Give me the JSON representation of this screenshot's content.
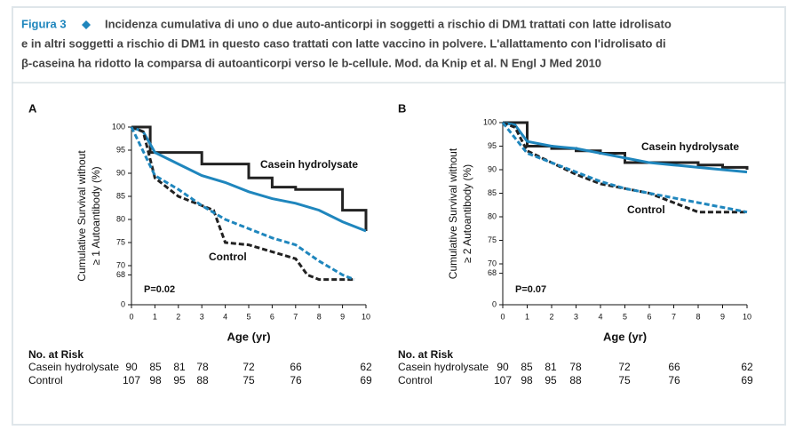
{
  "caption": {
    "label": "Figura 3",
    "lines": [
      "Incidenza cumulativa di uno o due auto-anticorpi in soggetti a rischio di DM1 trattati con latte idrolisato",
      "e in altri soggetti a rischio di DM1 in questo caso trattati con latte vaccino in polvere. L'allattamento con l'idrolisato di",
      "β-caseina ha ridotto la comparsa di autoanticorpi verso le b-cellule. Mod. da Knip et al. N Engl J Med 2010"
    ]
  },
  "chart_data": [
    {
      "type": "line",
      "panel": "A",
      "ylabel": [
        "Cumulative Survival without",
        "≥ 1 Autoantibody (%)"
      ],
      "xlabel": "Age (yr)",
      "annotation": "P=0.02",
      "xlim": [
        0,
        10
      ],
      "xticks": [
        0,
        1,
        2,
        3,
        4,
        5,
        6,
        7,
        8,
        9,
        10
      ],
      "ylim": [
        0,
        100
      ],
      "axis_break": [
        0,
        68
      ],
      "yticks": [
        0,
        68,
        70,
        75,
        80,
        85,
        90,
        95,
        100
      ],
      "series": [
        {
          "name": "Casein hydrolysate",
          "color": "#222222",
          "step": true,
          "x": [
            0,
            0.5,
            0.8,
            2,
            3,
            4,
            5,
            6,
            7,
            8,
            9,
            10
          ],
          "values": [
            100,
            100,
            94.5,
            94.5,
            92,
            92,
            89,
            87,
            86.5,
            86.5,
            82,
            77.5
          ]
        },
        {
          "color": "#1f86bd",
          "x": [
            0,
            0.5,
            1,
            2,
            3,
            4,
            5,
            6,
            7,
            8,
            9,
            10
          ],
          "values": [
            100,
            99,
            94.5,
            92,
            89.5,
            88,
            86,
            84.5,
            83.5,
            82,
            79.5,
            77.5
          ]
        },
        {
          "name": "Control",
          "color": "#222222",
          "dashed": true,
          "x": [
            0,
            0.5,
            1,
            2,
            3,
            3.5,
            4,
            5,
            6,
            7,
            7.5,
            8,
            9,
            9.5
          ],
          "values": [
            100,
            99,
            89,
            85,
            83,
            82,
            75,
            74.5,
            73,
            71.5,
            68,
            67,
            67,
            67
          ]
        },
        {
          "color": "#1f86bd",
          "dashed": true,
          "x": [
            0,
            1,
            2,
            3,
            4,
            5,
            6,
            7,
            8,
            9,
            9.5
          ],
          "values": [
            100,
            89.5,
            86.5,
            83,
            80,
            78,
            76,
            74.5,
            71,
            68,
            67
          ]
        }
      ],
      "risk_table": {
        "title": "No. at Risk",
        "rows": [
          [
            "Casein hydrolysate",
            "90",
            "85",
            "81",
            "78",
            "72",
            "66",
            "62"
          ],
          [
            "Control",
            "107",
            "98",
            "95",
            "88",
            "75",
            "76",
            "69"
          ]
        ]
      }
    },
    {
      "type": "line",
      "panel": "B",
      "ylabel": [
        "Cumulative Survival without",
        "≥ 2 Autoantibody (%)"
      ],
      "xlabel": "Age (yr)",
      "annotation": "P=0.07",
      "xlim": [
        0,
        10
      ],
      "xticks": [
        0,
        1,
        2,
        3,
        4,
        5,
        6,
        7,
        8,
        9,
        10
      ],
      "ylim": [
        0,
        100
      ],
      "axis_break": [
        0,
        68
      ],
      "yticks": [
        0,
        68,
        70,
        75,
        80,
        85,
        90,
        95,
        100
      ],
      "series": [
        {
          "name": "Casein hydrolysate",
          "color": "#222222",
          "step": true,
          "x": [
            0,
            0.5,
            1,
            2,
            3,
            4,
            5,
            6,
            7,
            8,
            9,
            10
          ],
          "values": [
            100,
            100,
            95,
            94.5,
            94,
            93.5,
            91.5,
            91.5,
            91.5,
            91,
            90.5,
            90
          ]
        },
        {
          "color": "#1f86bd",
          "x": [
            0,
            0.5,
            1,
            2,
            3,
            4,
            5,
            6,
            7,
            8,
            9,
            10
          ],
          "values": [
            100,
            99.5,
            96,
            95,
            94.5,
            93.5,
            92.5,
            91.5,
            91,
            90.5,
            90,
            89.5
          ]
        },
        {
          "name": "Control",
          "color": "#222222",
          "dashed": true,
          "x": [
            0,
            0.5,
            1,
            2,
            3,
            4,
            5,
            6,
            7,
            8,
            9,
            10
          ],
          "values": [
            100,
            99,
            94,
            91.5,
            89,
            87,
            86,
            85,
            83,
            81,
            81,
            81
          ]
        },
        {
          "color": "#1f86bd",
          "dashed": true,
          "x": [
            0,
            1,
            2,
            3,
            4,
            5,
            6,
            7,
            8,
            9,
            10
          ],
          "values": [
            100,
            93.5,
            91.5,
            89.5,
            87.5,
            86,
            85,
            84,
            83,
            82,
            81
          ]
        }
      ],
      "risk_table": {
        "title": "No. at Risk",
        "rows": [
          [
            "Casein hydrolysate",
            "90",
            "85",
            "81",
            "78",
            "72",
            "66",
            "62"
          ],
          [
            "Control",
            "107",
            "98",
            "95",
            "88",
            "75",
            "76",
            "69"
          ]
        ]
      }
    }
  ]
}
